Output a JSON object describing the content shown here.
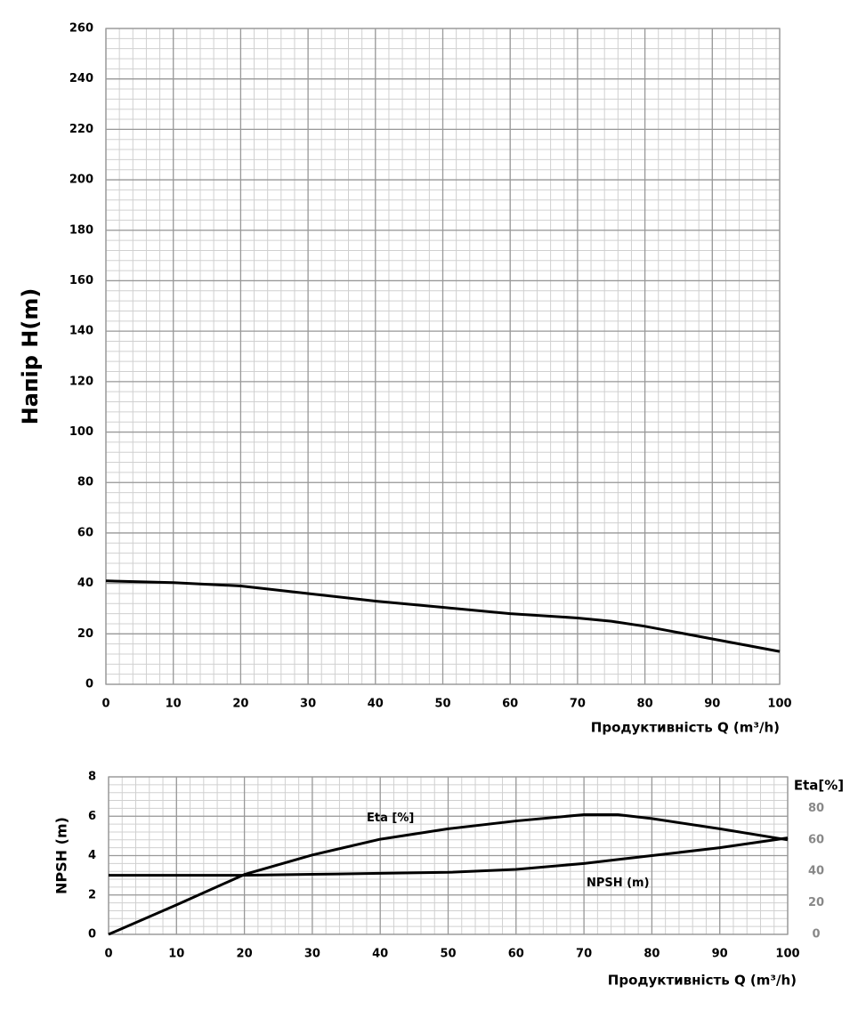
{
  "chart_data": [
    {
      "type": "line",
      "y_label": "Напір H(m)",
      "x_label": "Продуктивність  Q (m³/h)",
      "x": [
        0,
        10,
        20,
        30,
        40,
        50,
        60,
        70,
        75,
        80,
        90,
        100
      ],
      "series": [
        {
          "name": "H",
          "color": "#000000",
          "values": [
            41,
            40.3,
            39,
            36,
            33,
            30.5,
            28,
            26.3,
            25,
            23,
            18,
            13
          ]
        }
      ],
      "xlim": [
        0,
        100
      ],
      "xticks": [
        0,
        10,
        20,
        30,
        40,
        50,
        60,
        70,
        80,
        90,
        100
      ],
      "ylim": [
        0,
        260
      ],
      "yticks": [
        0,
        20,
        40,
        60,
        80,
        100,
        120,
        140,
        160,
        180,
        200,
        220,
        240,
        260
      ],
      "grid": true
    },
    {
      "type": "line",
      "y_label": "NPSH (m)",
      "y2_label": "Eta[%]",
      "x_label": "Продуктивність  Q (m³/h)",
      "x": [
        0,
        10,
        20,
        30,
        40,
        50,
        60,
        70,
        75,
        80,
        90,
        100
      ],
      "series": [
        {
          "name": "NPSH (m)",
          "color": "#000000",
          "values": [
            3,
            3,
            3,
            3.05,
            3.1,
            3.15,
            3.3,
            3.6,
            3.8,
            4.0,
            4.4,
            4.9
          ]
        },
        {
          "name": "Eta [%]",
          "color": "#000000",
          "axis": "y2",
          "values": [
            0,
            18.7,
            38,
            50.4,
            60.4,
            67,
            72,
            76,
            76,
            73.5,
            67,
            60
          ]
        }
      ],
      "xlim": [
        0,
        100
      ],
      "xticks": [
        0,
        10,
        20,
        30,
        40,
        50,
        60,
        70,
        80,
        90,
        100
      ],
      "ylim": [
        0,
        8
      ],
      "yticks": [
        0,
        2,
        4,
        6,
        8
      ],
      "y2lim": [
        0,
        100
      ],
      "y2ticks": [
        0,
        20,
        40,
        60,
        80
      ],
      "grid": true
    }
  ]
}
